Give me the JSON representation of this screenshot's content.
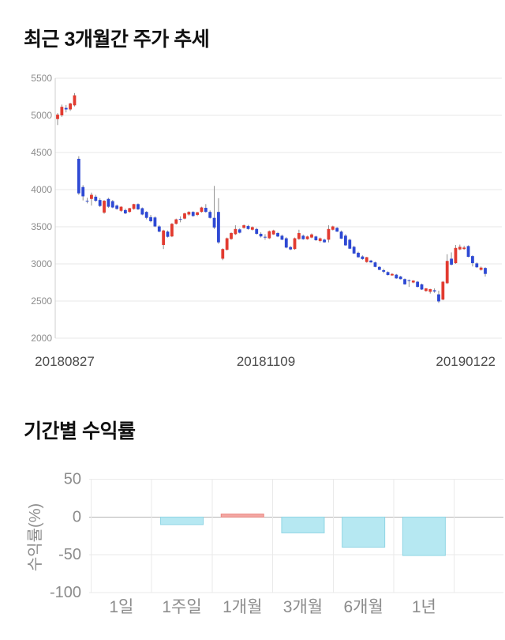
{
  "chart_data": [
    {
      "type": "candlestick",
      "title": "최근 3개월간 주가 추세",
      "x_axis_labels": [
        "20180827",
        "20181109",
        "20190122"
      ],
      "y_ticks": [
        5500,
        5000,
        4500,
        4000,
        3500,
        3000,
        2500,
        2000
      ],
      "ylim": [
        2000,
        5500
      ],
      "grid": true,
      "colors": {
        "up": "#e23b30",
        "down": "#2e49d4",
        "wick": "#8f8f8f",
        "grid": "#e7e7e7",
        "axis": "#cfcfcf",
        "tick_text": "#8c8c8c",
        "date_text": "#4a4a4a"
      },
      "candles_ohlc": [
        [
          4950,
          5030,
          4870,
          5010
        ],
        [
          5000,
          5145,
          4980,
          5115
        ],
        [
          5100,
          5140,
          5040,
          5080
        ],
        [
          5080,
          5170,
          5060,
          5160
        ],
        [
          5135,
          5300,
          5120,
          5270
        ],
        [
          4415,
          4450,
          3930,
          3950
        ],
        [
          4035,
          4060,
          3855,
          3910
        ],
        [
          3850,
          3890,
          3815,
          3845
        ],
        [
          3875,
          3960,
          3785,
          3930
        ],
        [
          3905,
          3930,
          3835,
          3850
        ],
        [
          3860,
          3885,
          3765,
          3780
        ],
        [
          3690,
          3860,
          3675,
          3850
        ],
        [
          3875,
          3890,
          3755,
          3770
        ],
        [
          3845,
          3860,
          3750,
          3760
        ],
        [
          3785,
          3800,
          3730,
          3740
        ],
        [
          3715,
          3775,
          3700,
          3770
        ],
        [
          3725,
          3745,
          3670,
          3680
        ],
        [
          3700,
          3755,
          3690,
          3750
        ],
        [
          3740,
          3810,
          3730,
          3805
        ],
        [
          3805,
          3815,
          3725,
          3735
        ],
        [
          3750,
          3760,
          3655,
          3665
        ],
        [
          3700,
          3710,
          3600,
          3620
        ],
        [
          3630,
          3660,
          3560,
          3575
        ],
        [
          3625,
          3640,
          3495,
          3505
        ],
        [
          3505,
          3520,
          3425,
          3435
        ],
        [
          3255,
          3460,
          3200,
          3450
        ],
        [
          3435,
          3450,
          3355,
          3365
        ],
        [
          3370,
          3550,
          3360,
          3540
        ],
        [
          3540,
          3610,
          3530,
          3600
        ],
        [
          3605,
          3640,
          3560,
          3600
        ],
        [
          3610,
          3690,
          3600,
          3680
        ],
        [
          3665,
          3710,
          3650,
          3700
        ],
        [
          3700,
          3710,
          3635,
          3645
        ],
        [
          3660,
          3700,
          3645,
          3695
        ],
        [
          3700,
          3770,
          3690,
          3760
        ],
        [
          3755,
          3805,
          3690,
          3700
        ],
        [
          3700,
          3720,
          3610,
          3620
        ],
        [
          3620,
          4050,
          3470,
          3490
        ],
        [
          3700,
          3885,
          3270,
          3290
        ],
        [
          3070,
          3210,
          3050,
          3200
        ],
        [
          3190,
          3355,
          3180,
          3345
        ],
        [
          3335,
          3425,
          3325,
          3415
        ],
        [
          3400,
          3520,
          3390,
          3470
        ],
        [
          3465,
          3480,
          3410,
          3420
        ],
        [
          3485,
          3530,
          3475,
          3520
        ],
        [
          3510,
          3525,
          3460,
          3470
        ],
        [
          3460,
          3505,
          3450,
          3495
        ],
        [
          3470,
          3485,
          3395,
          3405
        ],
        [
          3405,
          3425,
          3355,
          3370
        ],
        [
          3365,
          3400,
          3325,
          3360
        ],
        [
          3345,
          3450,
          3335,
          3440
        ],
        [
          3397,
          3460,
          3390,
          3450
        ],
        [
          3415,
          3430,
          3360,
          3369
        ],
        [
          3379,
          3395,
          3320,
          3326
        ],
        [
          3345,
          3360,
          3210,
          3220
        ],
        [
          3227,
          3240,
          3185,
          3195
        ],
        [
          3200,
          3355,
          3190,
          3345
        ],
        [
          3335,
          3460,
          3325,
          3415
        ],
        [
          3379,
          3395,
          3325,
          3333
        ],
        [
          3333,
          3380,
          3325,
          3369
        ],
        [
          3355,
          3410,
          3345,
          3397
        ],
        [
          3369,
          3380,
          3310,
          3319
        ],
        [
          3309,
          3355,
          3290,
          3344
        ],
        [
          3326,
          3340,
          3285,
          3291
        ],
        [
          3326,
          3520,
          3290,
          3470
        ],
        [
          3460,
          3515,
          3450,
          3505
        ],
        [
          3485,
          3495,
          3430,
          3435
        ],
        [
          3435,
          3450,
          3335,
          3340
        ],
        [
          3380,
          3400,
          3245,
          3250
        ],
        [
          3325,
          3340,
          3200,
          3205
        ],
        [
          3230,
          3245,
          3135,
          3140
        ],
        [
          3150,
          3165,
          3085,
          3090
        ],
        [
          3100,
          3115,
          3055,
          3065
        ],
        [
          3025,
          3095,
          3015,
          3090
        ],
        [
          3045,
          3055,
          3015,
          3020
        ],
        [
          3020,
          3030,
          2955,
          2960
        ],
        [
          2960,
          2970,
          2915,
          2920
        ],
        [
          2915,
          2935,
          2875,
          2895
        ],
        [
          2890,
          2900,
          2845,
          2850
        ],
        [
          2845,
          2875,
          2840,
          2865
        ],
        [
          2855,
          2865,
          2800,
          2805
        ],
        [
          2830,
          2840,
          2790,
          2795
        ],
        [
          2795,
          2805,
          2720,
          2725
        ],
        [
          2780,
          2790,
          2690,
          2770
        ],
        [
          2750,
          2780,
          2740,
          2775
        ],
        [
          2760,
          2770,
          2685,
          2690
        ],
        [
          2725,
          2735,
          2650,
          2655
        ],
        [
          2635,
          2675,
          2625,
          2670
        ],
        [
          2625,
          2665,
          2600,
          2660
        ],
        [
          2645,
          2670,
          2610,
          2630
        ],
        [
          2590,
          2640,
          2475,
          2495
        ],
        [
          2520,
          2770,
          2510,
          2760
        ],
        [
          2740,
          3130,
          2730,
          3040
        ],
        [
          3070,
          3155,
          2980,
          2990
        ],
        [
          3010,
          3255,
          3000,
          3215
        ],
        [
          3195,
          3260,
          3185,
          3230
        ],
        [
          3200,
          3245,
          3190,
          3220
        ],
        [
          3240,
          3250,
          3090,
          3095
        ],
        [
          3105,
          3115,
          2965,
          3010
        ],
        [
          3007,
          3020,
          2945,
          2955
        ],
        [
          2920,
          2965,
          2910,
          2950
        ],
        [
          2945,
          2955,
          2830,
          2865
        ]
      ]
    },
    {
      "type": "bar",
      "title": "기간별 수익률",
      "ylabel": "수익률(%)",
      "categories": [
        "1일",
        "1주일",
        "1개월",
        "3개월",
        "6개월",
        "1년"
      ],
      "values": [
        0,
        -10,
        4,
        -21,
        -40,
        -51
      ],
      "y_ticks": [
        50,
        0,
        -50,
        -100
      ],
      "ylim": [
        -100,
        50
      ],
      "grid": true,
      "colors": {
        "neg_fill": "#b6e8f2",
        "neg_stroke": "#90d5e4",
        "pos_fill": "#f3a7a3",
        "pos_stroke": "#ec8781",
        "grid": "#eaeaea",
        "zero_line": "#b5b5b5",
        "text": "#8c8c8c"
      }
    }
  ]
}
